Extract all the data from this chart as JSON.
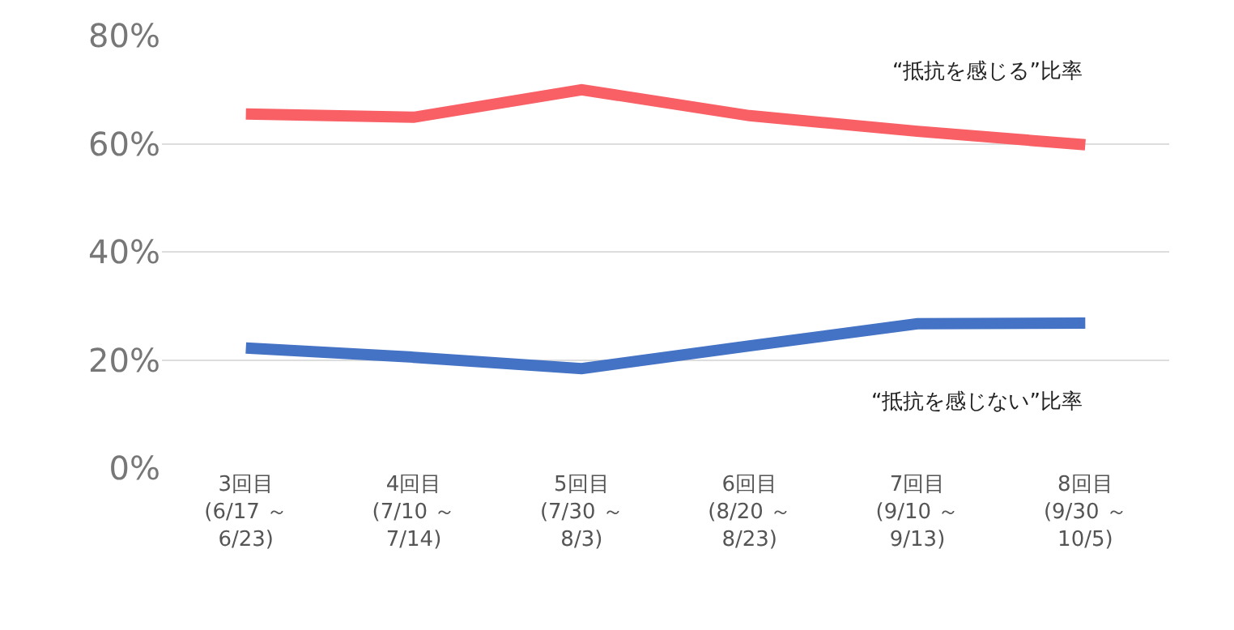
{
  "chart_data": {
    "type": "line",
    "categories": [
      "3回目\n(6/17 ～\n6/23)",
      "4回目\n(7/10 ～\n7/14)",
      "5回目\n(7/30 ～\n8/3)",
      "6回目\n(8/20 ～\n8/23)",
      "7回目\n(9/10 ～\n9/13)",
      "8回目\n(9/30 ～\n10/5)"
    ],
    "series": [
      {
        "name": "“抵抗を感じる”比率",
        "color": "#f86065",
        "values": [
          65.5,
          64.9,
          70.0,
          65.2,
          62.3,
          59.8
        ]
      },
      {
        "name": "“抵抗を感じない”比率",
        "color": "#4472c4",
        "values": [
          22.2,
          20.5,
          18.4,
          22.6,
          26.7,
          26.8
        ]
      }
    ],
    "ylim": [
      0,
      80
    ],
    "yticks": [
      {
        "value": 0,
        "label": "0%"
      },
      {
        "value": 20,
        "label": "20%"
      },
      {
        "value": 40,
        "label": "40%"
      },
      {
        "value": 60,
        "label": "60%"
      },
      {
        "value": 80,
        "label": "80%"
      }
    ],
    "grid": "y",
    "legend": false,
    "marker": "none",
    "line_style": "solid"
  }
}
